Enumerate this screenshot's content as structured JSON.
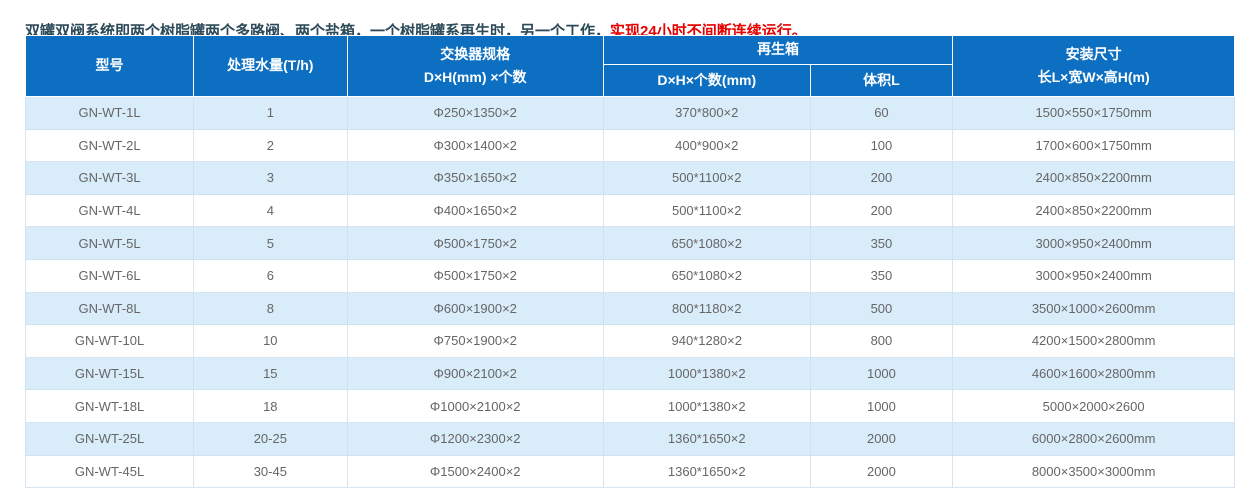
{
  "intro": {
    "text_black": "双罐双阀系统即两个树脂罐两个多路阀、两个盐箱，一个树脂罐系再生时，另一个工作，",
    "text_red": "实现24小时不间断连续运行。"
  },
  "colors": {
    "header_bg": "#0d6fc2",
    "header_text": "#ffffff",
    "row_alt_bg": "#d9ecfa",
    "row_bg": "#ffffff",
    "body_text": "#666666",
    "intro_text": "#2c4a58",
    "intro_red": "#e60000",
    "cell_border": "#d8e5f1"
  },
  "table": {
    "headers": {
      "model": "型号",
      "capacity": "处理水量(T/h)",
      "exchanger_line1": "交换器规格",
      "exchanger_line2": "D×H(mm) ×个数",
      "regen_box": "再生箱",
      "regen_size": "D×H×个数(mm)",
      "volume": "体积L",
      "install_line1": "安装尺寸",
      "install_line2": "长L×宽W×高H(m)"
    },
    "column_keys": [
      "model",
      "capacity",
      "exchanger-spec",
      "regen-size",
      "volume",
      "install-size"
    ],
    "rows": [
      [
        "GN-WT-1L",
        "1",
        "Φ250×1350×2",
        "370*800×2",
        "60",
        "1500×550×1750mm"
      ],
      [
        "GN-WT-2L",
        "2",
        "Φ300×1400×2",
        "400*900×2",
        "100",
        "1700×600×1750mm"
      ],
      [
        "GN-WT-3L",
        "3",
        "Φ350×1650×2",
        "500*1100×2",
        "200",
        "2400×850×2200mm"
      ],
      [
        "GN-WT-4L",
        "4",
        "Φ400×1650×2",
        "500*1100×2",
        "200",
        "2400×850×2200mm"
      ],
      [
        "GN-WT-5L",
        "5",
        "Φ500×1750×2",
        "650*1080×2",
        "350",
        "3000×950×2400mm"
      ],
      [
        "GN-WT-6L",
        "6",
        "Φ500×1750×2",
        "650*1080×2",
        "350",
        "3000×950×2400mm"
      ],
      [
        "GN-WT-8L",
        "8",
        "Φ600×1900×2",
        "800*1180×2",
        "500",
        "3500×1000×2600mm"
      ],
      [
        "GN-WT-10L",
        "10",
        "Φ750×1900×2",
        "940*1280×2",
        "800",
        "4200×1500×2800mm"
      ],
      [
        "GN-WT-15L",
        "15",
        "Φ900×2100×2",
        "1000*1380×2",
        "1000",
        "4600×1600×2800mm"
      ],
      [
        "GN-WT-18L",
        "18",
        "Φ1000×2100×2",
        "1000*1380×2",
        "1000",
        "5000×2000×2600"
      ],
      [
        "GN-WT-25L",
        "20-25",
        "Φ1200×2300×2",
        "1360*1650×2",
        "2000",
        "6000×2800×2600mm"
      ],
      [
        "GN-WT-45L",
        "30-45",
        "Φ1500×2400×2",
        "1360*1650×2",
        "2000",
        "8000×3500×3000mm"
      ]
    ]
  }
}
